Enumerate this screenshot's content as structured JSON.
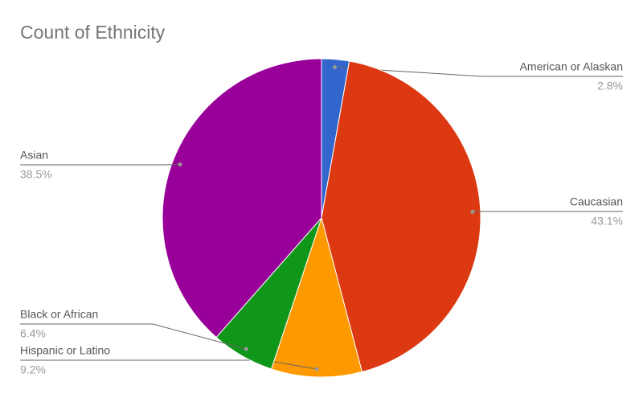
{
  "chart_data": {
    "type": "pie",
    "title": "Count of Ethnicity",
    "categories": [
      "American or Alaskan",
      "Caucasian",
      "Hispanic or Latino",
      "Black or African",
      "Asian"
    ],
    "values": [
      2.8,
      43.1,
      9.2,
      6.4,
      38.5
    ],
    "value_labels": [
      "2.8%",
      "43.1%",
      "9.2%",
      "6.4%",
      "38.5%"
    ],
    "colors": [
      "#3366cc",
      "#dc3912",
      "#ff9900",
      "#109618",
      "#990099"
    ]
  }
}
